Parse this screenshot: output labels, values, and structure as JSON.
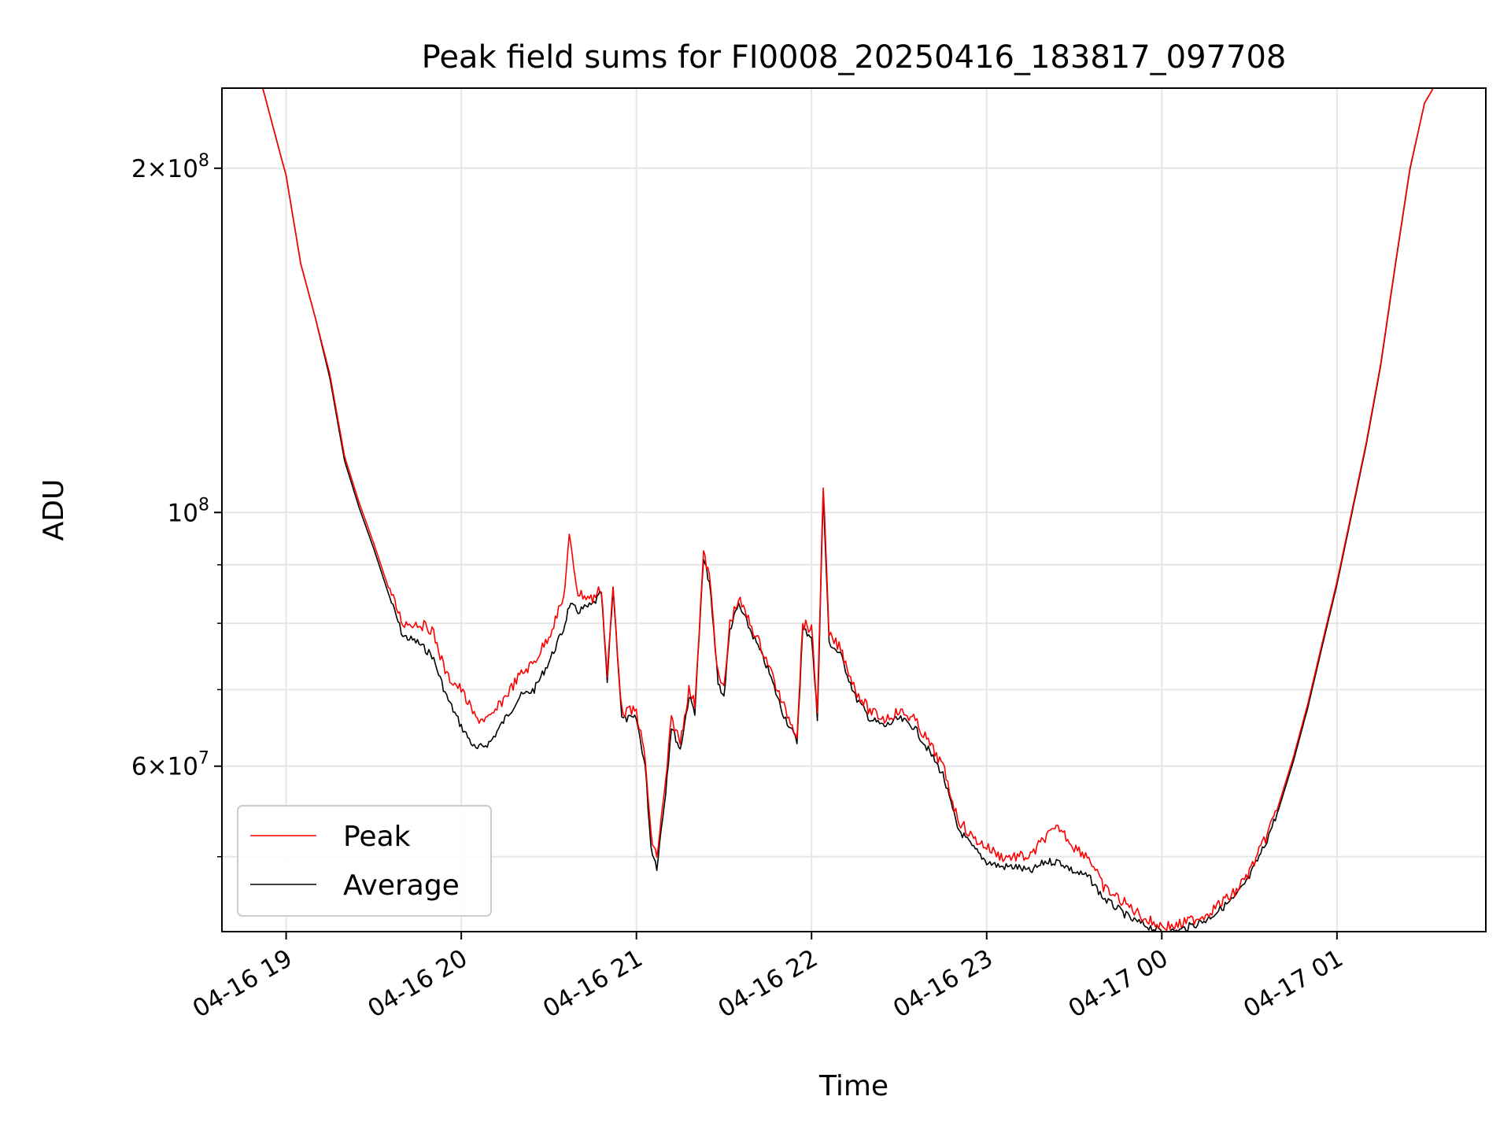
{
  "chart_data": {
    "type": "line",
    "title": "Peak field sums for FI0008_20250416_183817_097708",
    "xlabel": "Time",
    "ylabel": "ADU",
    "yscale": "log",
    "xlim": [
      "2025-04-16T18:38",
      "2025-04-17T01:51"
    ],
    "ylim": [
      43000000,
      235000000
    ],
    "grid": true,
    "legend": "lower-left",
    "x_ticks": [
      {
        "t": "2025-04-16T19:00",
        "label": "04-16 19"
      },
      {
        "t": "2025-04-16T20:00",
        "label": "04-16 20"
      },
      {
        "t": "2025-04-16T21:00",
        "label": "04-16 21"
      },
      {
        "t": "2025-04-16T22:00",
        "label": "04-16 22"
      },
      {
        "t": "2025-04-16T23:00",
        "label": "04-16 23"
      },
      {
        "t": "2025-04-17T00:00",
        "label": "04-17 00"
      },
      {
        "t": "2025-04-17T01:00",
        "label": "04-17 01"
      }
    ],
    "y_major_ticks": [
      {
        "value": 60000000,
        "base": "6×10",
        "exp": "7"
      },
      {
        "value": 100000000,
        "base": "10",
        "exp": "8"
      },
      {
        "value": 200000000,
        "base": "2×10",
        "exp": "8"
      }
    ],
    "y_minor_ticks": [
      50000000,
      70000000,
      80000000,
      90000000
    ],
    "series": [
      {
        "name": "Peak",
        "color": "#ff0000",
        "points": [
          [
            "2025-04-16T18:38",
            235000000
          ],
          [
            "2025-04-16T18:52",
            235000000
          ],
          [
            "2025-04-16T18:56",
            215000000
          ],
          [
            "2025-04-16T19:00",
            197000000
          ],
          [
            "2025-04-16T19:05",
            165000000
          ],
          [
            "2025-04-16T19:10",
            148000000
          ],
          [
            "2025-04-16T19:15",
            132000000
          ],
          [
            "2025-04-16T19:20",
            112000000
          ],
          [
            "2025-04-16T19:25",
            102000000
          ],
          [
            "2025-04-16T19:30",
            94000000
          ],
          [
            "2025-04-16T19:35",
            86000000
          ],
          [
            "2025-04-16T19:40",
            80000000
          ],
          [
            "2025-04-16T19:45",
            80000000
          ],
          [
            "2025-04-16T19:50",
            79000000
          ],
          [
            "2025-04-16T19:55",
            72000000
          ],
          [
            "2025-04-16T20:00",
            70000000
          ],
          [
            "2025-04-16T20:05",
            66000000
          ],
          [
            "2025-04-16T20:10",
            66000000
          ],
          [
            "2025-04-16T20:15",
            69000000
          ],
          [
            "2025-04-16T20:20",
            72000000
          ],
          [
            "2025-04-16T20:25",
            74000000
          ],
          [
            "2025-04-16T20:30",
            78000000
          ],
          [
            "2025-04-16T20:35",
            84000000
          ],
          [
            "2025-04-16T20:37",
            95000000
          ],
          [
            "2025-04-16T20:40",
            85000000
          ],
          [
            "2025-04-16T20:45",
            84000000
          ],
          [
            "2025-04-16T20:48",
            86000000
          ],
          [
            "2025-04-16T20:50",
            72000000
          ],
          [
            "2025-04-16T20:52",
            86000000
          ],
          [
            "2025-04-16T20:55",
            67000000
          ],
          [
            "2025-04-16T21:00",
            67000000
          ],
          [
            "2025-04-16T21:03",
            61000000
          ],
          [
            "2025-04-16T21:05",
            52000000
          ],
          [
            "2025-04-16T21:07",
            50000000
          ],
          [
            "2025-04-16T21:10",
            58000000
          ],
          [
            "2025-04-16T21:12",
            66000000
          ],
          [
            "2025-04-16T21:15",
            63000000
          ],
          [
            "2025-04-16T21:18",
            70000000
          ],
          [
            "2025-04-16T21:20",
            68000000
          ],
          [
            "2025-04-16T21:23",
            92000000
          ],
          [
            "2025-04-16T21:25",
            88000000
          ],
          [
            "2025-04-16T21:28",
            72000000
          ],
          [
            "2025-04-16T21:30",
            70000000
          ],
          [
            "2025-04-16T21:32",
            80000000
          ],
          [
            "2025-04-16T21:35",
            84000000
          ],
          [
            "2025-04-16T21:40",
            79000000
          ],
          [
            "2025-04-16T21:45",
            74000000
          ],
          [
            "2025-04-16T21:50",
            68000000
          ],
          [
            "2025-04-16T21:55",
            64000000
          ],
          [
            "2025-04-16T21:57",
            80000000
          ],
          [
            "2025-04-16T22:00",
            79000000
          ],
          [
            "2025-04-16T22:02",
            67000000
          ],
          [
            "2025-04-16T22:04",
            106000000
          ],
          [
            "2025-04-16T22:06",
            78000000
          ],
          [
            "2025-04-16T22:10",
            76000000
          ],
          [
            "2025-04-16T22:15",
            70000000
          ],
          [
            "2025-04-16T22:20",
            67000000
          ],
          [
            "2025-04-16T22:25",
            66000000
          ],
          [
            "2025-04-16T22:30",
            67000000
          ],
          [
            "2025-04-16T22:35",
            66000000
          ],
          [
            "2025-04-16T22:40",
            63000000
          ],
          [
            "2025-04-16T22:45",
            60000000
          ],
          [
            "2025-04-16T22:50",
            54000000
          ],
          [
            "2025-04-16T22:55",
            52000000
          ],
          [
            "2025-04-16T23:00",
            51000000
          ],
          [
            "2025-04-16T23:05",
            50000000
          ],
          [
            "2025-04-16T23:10",
            50000000
          ],
          [
            "2025-04-16T23:15",
            50000000
          ],
          [
            "2025-04-16T23:20",
            52000000
          ],
          [
            "2025-04-16T23:25",
            53000000
          ],
          [
            "2025-04-16T23:30",
            51000000
          ],
          [
            "2025-04-16T23:35",
            50000000
          ],
          [
            "2025-04-16T23:40",
            47000000
          ],
          [
            "2025-04-16T23:45",
            46000000
          ],
          [
            "2025-04-16T23:50",
            45000000
          ],
          [
            "2025-04-16T23:55",
            44000000
          ],
          [
            "2025-04-17T00:00",
            43500000
          ],
          [
            "2025-04-17T00:05",
            43500000
          ],
          [
            "2025-04-17T00:10",
            44000000
          ],
          [
            "2025-04-17T00:15",
            44500000
          ],
          [
            "2025-04-17T00:20",
            45500000
          ],
          [
            "2025-04-17T00:25",
            46500000
          ],
          [
            "2025-04-17T00:30",
            48500000
          ],
          [
            "2025-04-17T00:35",
            51500000
          ],
          [
            "2025-04-17T00:40",
            55500000
          ],
          [
            "2025-04-17T00:45",
            61000000
          ],
          [
            "2025-04-17T00:50",
            68000000
          ],
          [
            "2025-04-17T00:55",
            77000000
          ],
          [
            "2025-04-17T01:00",
            87000000
          ],
          [
            "2025-04-17T01:05",
            100000000
          ],
          [
            "2025-04-17T01:10",
            115000000
          ],
          [
            "2025-04-17T01:15",
            135000000
          ],
          [
            "2025-04-17T01:20",
            165000000
          ],
          [
            "2025-04-17T01:25",
            200000000
          ],
          [
            "2025-04-17T01:30",
            228000000
          ],
          [
            "2025-04-17T01:33",
            235000000
          ],
          [
            "2025-04-17T01:51",
            235000000
          ]
        ]
      },
      {
        "name": "Average",
        "color": "#000000",
        "points": [
          [
            "2025-04-16T18:38",
            235000000
          ],
          [
            "2025-04-16T18:52",
            235000000
          ],
          [
            "2025-04-16T18:56",
            215000000
          ],
          [
            "2025-04-16T19:00",
            197000000
          ],
          [
            "2025-04-16T19:05",
            165000000
          ],
          [
            "2025-04-16T19:10",
            148000000
          ],
          [
            "2025-04-16T19:15",
            131000000
          ],
          [
            "2025-04-16T19:20",
            111000000
          ],
          [
            "2025-04-16T19:25",
            101000000
          ],
          [
            "2025-04-16T19:30",
            93000000
          ],
          [
            "2025-04-16T19:35",
            85000000
          ],
          [
            "2025-04-16T19:40",
            78000000
          ],
          [
            "2025-04-16T19:45",
            77000000
          ],
          [
            "2025-04-16T19:50",
            75000000
          ],
          [
            "2025-04-16T19:55",
            69000000
          ],
          [
            "2025-04-16T20:00",
            65000000
          ],
          [
            "2025-04-16T20:05",
            62000000
          ],
          [
            "2025-04-16T20:10",
            63000000
          ],
          [
            "2025-04-16T20:15",
            66000000
          ],
          [
            "2025-04-16T20:20",
            69000000
          ],
          [
            "2025-04-16T20:25",
            70000000
          ],
          [
            "2025-04-16T20:30",
            74000000
          ],
          [
            "2025-04-16T20:35",
            79000000
          ],
          [
            "2025-04-16T20:37",
            83000000
          ],
          [
            "2025-04-16T20:40",
            82000000
          ],
          [
            "2025-04-16T20:45",
            83000000
          ],
          [
            "2025-04-16T20:48",
            85000000
          ],
          [
            "2025-04-16T20:50",
            71000000
          ],
          [
            "2025-04-16T20:52",
            86000000
          ],
          [
            "2025-04-16T20:55",
            66000000
          ],
          [
            "2025-04-16T21:00",
            66000000
          ],
          [
            "2025-04-16T21:03",
            60000000
          ],
          [
            "2025-04-16T21:05",
            51000000
          ],
          [
            "2025-04-16T21:07",
            49000000
          ],
          [
            "2025-04-16T21:10",
            57000000
          ],
          [
            "2025-04-16T21:12",
            65000000
          ],
          [
            "2025-04-16T21:15",
            62000000
          ],
          [
            "2025-04-16T21:18",
            69000000
          ],
          [
            "2025-04-16T21:20",
            67000000
          ],
          [
            "2025-04-16T21:23",
            91000000
          ],
          [
            "2025-04-16T21:25",
            87000000
          ],
          [
            "2025-04-16T21:28",
            71000000
          ],
          [
            "2025-04-16T21:30",
            69000000
          ],
          [
            "2025-04-16T21:32",
            79000000
          ],
          [
            "2025-04-16T21:35",
            83000000
          ],
          [
            "2025-04-16T21:40",
            78000000
          ],
          [
            "2025-04-16T21:45",
            73000000
          ],
          [
            "2025-04-16T21:50",
            67000000
          ],
          [
            "2025-04-16T21:55",
            63000000
          ],
          [
            "2025-04-16T21:57",
            79000000
          ],
          [
            "2025-04-16T22:00",
            78000000
          ],
          [
            "2025-04-16T22:02",
            66000000
          ],
          [
            "2025-04-16T22:04",
            104000000
          ],
          [
            "2025-04-16T22:06",
            77000000
          ],
          [
            "2025-04-16T22:10",
            75000000
          ],
          [
            "2025-04-16T22:15",
            69000000
          ],
          [
            "2025-04-16T22:20",
            66000000
          ],
          [
            "2025-04-16T22:25",
            65000000
          ],
          [
            "2025-04-16T22:30",
            66000000
          ],
          [
            "2025-04-16T22:35",
            65000000
          ],
          [
            "2025-04-16T22:40",
            62000000
          ],
          [
            "2025-04-16T22:45",
            59000000
          ],
          [
            "2025-04-16T22:50",
            53000000
          ],
          [
            "2025-04-16T22:55",
            51000000
          ],
          [
            "2025-04-16T23:00",
            49500000
          ],
          [
            "2025-04-16T23:05",
            49000000
          ],
          [
            "2025-04-16T23:10",
            49000000
          ],
          [
            "2025-04-16T23:15",
            48500000
          ],
          [
            "2025-04-16T23:20",
            49500000
          ],
          [
            "2025-04-16T23:25",
            49500000
          ],
          [
            "2025-04-16T23:30",
            48500000
          ],
          [
            "2025-04-16T23:35",
            48000000
          ],
          [
            "2025-04-16T23:40",
            46000000
          ],
          [
            "2025-04-16T23:45",
            45000000
          ],
          [
            "2025-04-16T23:50",
            44000000
          ],
          [
            "2025-04-16T23:55",
            43500000
          ],
          [
            "2025-04-17T00:00",
            43000000
          ],
          [
            "2025-04-17T00:05",
            43000000
          ],
          [
            "2025-04-17T00:10",
            43500000
          ],
          [
            "2025-04-17T00:15",
            44000000
          ],
          [
            "2025-04-17T00:20",
            45000000
          ],
          [
            "2025-04-17T00:25",
            46000000
          ],
          [
            "2025-04-17T00:30",
            48000000
          ],
          [
            "2025-04-17T00:35",
            51000000
          ],
          [
            "2025-04-17T00:40",
            55000000
          ],
          [
            "2025-04-17T00:45",
            60500000
          ],
          [
            "2025-04-17T00:50",
            67500000
          ],
          [
            "2025-04-17T00:55",
            76500000
          ],
          [
            "2025-04-17T01:00",
            86500000
          ],
          [
            "2025-04-17T01:05",
            99500000
          ],
          [
            "2025-04-17T01:10",
            114500000
          ],
          [
            "2025-04-17T01:15",
            134500000
          ],
          [
            "2025-04-17T01:20",
            164500000
          ],
          [
            "2025-04-17T01:25",
            199500000
          ],
          [
            "2025-04-17T01:30",
            228000000
          ],
          [
            "2025-04-17T01:33",
            235000000
          ],
          [
            "2025-04-17T01:51",
            235000000
          ]
        ]
      }
    ]
  }
}
